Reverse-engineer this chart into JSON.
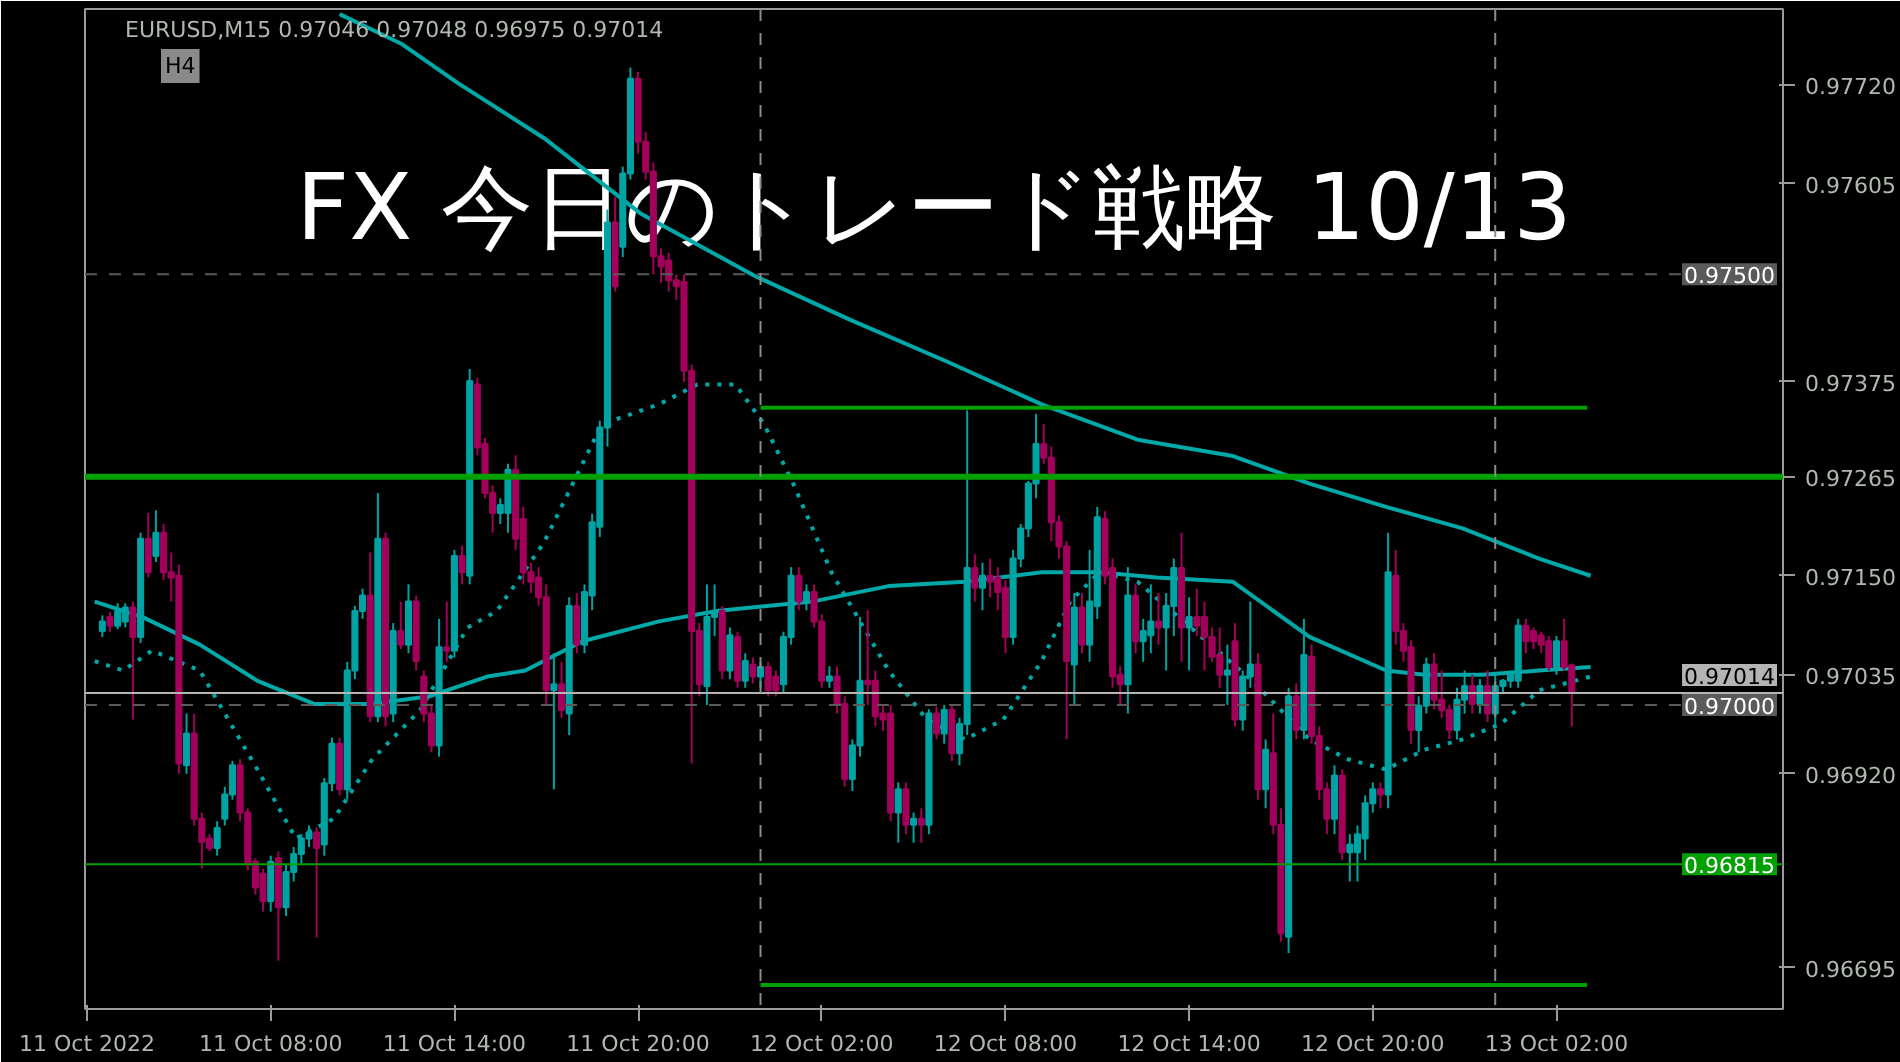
{
  "chart_data": {
    "type": "candlestick",
    "title": "FX 今日のトレード戦略 10/13",
    "subtitle": "EURUSD,M15  0.97046 0.97048 0.96975 0.97014",
    "annotations": [
      "H4"
    ],
    "x": [
      "2022-10-11T02:30",
      "2022-10-11T02:45",
      "2022-10-11T03:00",
      "2022-10-11T03:15",
      "2022-10-11T03:30",
      "2022-10-11T03:45",
      "2022-10-11T04:00",
      "2022-10-11T04:15",
      "2022-10-11T04:30",
      "2022-10-11T04:45",
      "2022-10-11T05:00",
      "2022-10-11T05:15",
      "2022-10-11T05:30",
      "2022-10-11T05:45",
      "2022-10-11T06:00",
      "2022-10-11T06:15",
      "2022-10-11T06:30",
      "2022-10-11T06:45",
      "2022-10-11T07:00",
      "2022-10-11T07:15",
      "2022-10-11T07:30",
      "2022-10-11T07:45",
      "2022-10-11T08:00",
      "2022-10-11T08:15",
      "2022-10-11T08:30",
      "2022-10-11T08:45",
      "2022-10-11T09:00",
      "2022-10-11T09:15",
      "2022-10-11T09:30",
      "2022-10-11T09:45",
      "2022-10-11T10:00",
      "2022-10-11T10:15",
      "2022-10-11T10:30",
      "2022-10-11T10:45",
      "2022-10-11T11:00",
      "2022-10-11T11:15",
      "2022-10-11T11:30",
      "2022-10-11T11:45",
      "2022-10-11T12:00",
      "2022-10-11T12:15",
      "2022-10-11T12:30",
      "2022-10-11T12:45",
      "2022-10-11T13:00",
      "2022-10-11T13:15",
      "2022-10-11T13:30",
      "2022-10-11T13:45",
      "2022-10-11T14:00",
      "2022-10-11T14:15",
      "2022-10-11T14:30",
      "2022-10-11T14:45",
      "2022-10-11T15:00",
      "2022-10-11T15:15",
      "2022-10-11T15:30",
      "2022-10-11T15:45",
      "2022-10-11T16:00",
      "2022-10-11T16:15",
      "2022-10-11T16:30",
      "2022-10-11T16:45",
      "2022-10-11T17:00",
      "2022-10-11T17:15",
      "2022-10-11T17:30",
      "2022-10-11T17:45",
      "2022-10-11T18:00",
      "2022-10-11T18:15",
      "2022-10-11T18:30",
      "2022-10-11T18:45",
      "2022-10-11T19:00",
      "2022-10-11T19:15",
      "2022-10-11T19:30",
      "2022-10-11T19:45",
      "2022-10-11T20:00",
      "2022-10-11T20:15",
      "2022-10-11T20:30",
      "2022-10-11T20:45",
      "2022-10-11T21:00",
      "2022-10-11T21:15",
      "2022-10-11T21:30",
      "2022-10-11T21:45",
      "2022-10-11T22:00",
      "2022-10-11T22:15",
      "2022-10-11T22:30",
      "2022-10-11T22:45",
      "2022-10-11T23:00",
      "2022-10-11T23:15",
      "2022-10-11T23:30",
      "2022-10-11T23:45",
      "2022-10-12T00:00",
      "2022-10-12T00:15",
      "2022-10-12T00:30",
      "2022-10-12T00:45",
      "2022-10-12T01:00",
      "2022-10-12T01:15",
      "2022-10-12T01:30",
      "2022-10-12T01:45",
      "2022-10-12T02:00",
      "2022-10-12T02:15",
      "2022-10-12T02:30",
      "2022-10-12T02:45",
      "2022-10-12T03:00",
      "2022-10-12T03:15",
      "2022-10-12T03:30",
      "2022-10-12T03:45",
      "2022-10-12T04:00",
      "2022-10-12T04:15",
      "2022-10-12T04:30",
      "2022-10-12T04:45",
      "2022-10-12T05:00",
      "2022-10-12T05:15",
      "2022-10-12T05:30",
      "2022-10-12T05:45",
      "2022-10-12T06:00",
      "2022-10-12T06:15",
      "2022-10-12T06:30",
      "2022-10-12T06:45",
      "2022-10-12T07:00",
      "2022-10-12T07:15",
      "2022-10-12T07:30",
      "2022-10-12T07:45",
      "2022-10-12T08:00",
      "2022-10-12T08:15",
      "2022-10-12T08:30",
      "2022-10-12T08:45",
      "2022-10-12T09:00",
      "2022-10-12T09:15",
      "2022-10-12T09:30",
      "2022-10-12T09:45",
      "2022-10-12T10:00",
      "2022-10-12T10:15",
      "2022-10-12T10:30",
      "2022-10-12T10:45",
      "2022-10-12T11:00",
      "2022-10-12T11:15",
      "2022-10-12T11:30",
      "2022-10-12T11:45",
      "2022-10-12T12:00",
      "2022-10-12T12:15",
      "2022-10-12T12:30",
      "2022-10-12T12:45",
      "2022-10-12T13:00",
      "2022-10-12T13:15",
      "2022-10-12T13:30",
      "2022-10-12T13:45",
      "2022-10-12T14:00",
      "2022-10-12T14:15",
      "2022-10-12T14:30",
      "2022-10-12T14:45",
      "2022-10-12T15:00",
      "2022-10-12T15:15",
      "2022-10-12T15:30",
      "2022-10-12T15:45",
      "2022-10-12T16:00",
      "2022-10-12T16:15",
      "2022-10-12T16:30",
      "2022-10-12T16:45",
      "2022-10-12T17:00",
      "2022-10-12T17:15",
      "2022-10-12T17:30",
      "2022-10-12T17:45",
      "2022-10-12T18:00",
      "2022-10-12T18:15",
      "2022-10-12T18:30",
      "2022-10-12T18:45",
      "2022-10-12T19:00",
      "2022-10-12T19:15",
      "2022-10-12T19:30",
      "2022-10-12T19:45",
      "2022-10-12T20:00",
      "2022-10-12T20:15",
      "2022-10-12T20:30",
      "2022-10-12T20:45",
      "2022-10-12T21:00",
      "2022-10-12T21:15",
      "2022-10-12T21:30",
      "2022-10-12T21:45",
      "2022-10-12T22:00",
      "2022-10-12T22:15",
      "2022-10-12T22:30",
      "2022-10-12T22:45",
      "2022-10-12T23:00",
      "2022-10-12T23:15",
      "2022-10-12T23:30",
      "2022-10-12T23:45",
      "2022-10-13T00:00",
      "2022-10-13T00:15",
      "2022-10-13T00:30",
      "2022-10-13T00:45",
      "2022-10-13T01:00",
      "2022-10-13T01:15",
      "2022-10-13T01:30",
      "2022-10-13T01:45",
      "2022-10-13T02:00",
      "2022-10-13T02:15",
      "2022-10-13T02:30"
    ],
    "ohlc": [
      [
        0.97086,
        0.97104,
        0.97079,
        0.97097
      ],
      [
        0.97102,
        0.97108,
        0.97085,
        0.97092
      ],
      [
        0.97092,
        0.97118,
        0.97088,
        0.97109
      ],
      [
        0.97097,
        0.97118,
        0.9709,
        0.97113
      ],
      [
        0.97113,
        0.9712,
        0.96983,
        0.97079
      ],
      [
        0.97079,
        0.972,
        0.97072,
        0.97193
      ],
      [
        0.97193,
        0.97223,
        0.97148,
        0.97154
      ],
      [
        0.97173,
        0.97226,
        0.97166,
        0.972
      ],
      [
        0.972,
        0.9721,
        0.97145,
        0.97154
      ],
      [
        0.97154,
        0.97177,
        0.9712,
        0.97148
      ],
      [
        0.9715,
        0.97163,
        0.9692,
        0.96932
      ],
      [
        0.9693,
        0.9699,
        0.9692,
        0.96967
      ],
      [
        0.96967,
        0.9699,
        0.9686,
        0.96868
      ],
      [
        0.96868,
        0.96875,
        0.9681,
        0.96841
      ],
      [
        0.96845,
        0.9685,
        0.9683,
        0.96834
      ],
      [
        0.96834,
        0.96865,
        0.96825,
        0.96857
      ],
      [
        0.96868,
        0.96905,
        0.9686,
        0.96896
      ],
      [
        0.96896,
        0.96935,
        0.9689,
        0.9693
      ],
      [
        0.9693,
        0.96937,
        0.96865,
        0.96875
      ],
      [
        0.96875,
        0.9688,
        0.96808,
        0.96815
      ],
      [
        0.96818,
        0.96822,
        0.9678,
        0.96788
      ],
      [
        0.96804,
        0.9681,
        0.9676,
        0.96772
      ],
      [
        0.96772,
        0.96825,
        0.9676,
        0.96818
      ],
      [
        0.96822,
        0.9683,
        0.96703,
        0.96765
      ],
      [
        0.96765,
        0.96815,
        0.96755,
        0.96806
      ],
      [
        0.96806,
        0.96835,
        0.96795,
        0.96827
      ],
      [
        0.96827,
        0.9685,
        0.96815,
        0.96845
      ],
      [
        0.96845,
        0.9686,
        0.96835,
        0.96852
      ],
      [
        0.96852,
        0.96858,
        0.9673,
        0.96834
      ],
      [
        0.96838,
        0.96915,
        0.96825,
        0.96909
      ],
      [
        0.96909,
        0.96962,
        0.969,
        0.96955
      ],
      [
        0.96955,
        0.96962,
        0.96895,
        0.96902
      ],
      [
        0.96902,
        0.9705,
        0.9689,
        0.9704
      ],
      [
        0.9704,
        0.97115,
        0.9703,
        0.97109
      ],
      [
        0.97109,
        0.97135,
        0.971,
        0.97127
      ],
      [
        0.97127,
        0.97177,
        0.9698,
        0.96987
      ],
      [
        0.96987,
        0.97246,
        0.9698,
        0.97193
      ],
      [
        0.97193,
        0.972,
        0.96975,
        0.96987
      ],
      [
        0.9699,
        0.97095,
        0.9698,
        0.97086
      ],
      [
        0.97086,
        0.9712,
        0.97065,
        0.9707
      ],
      [
        0.9707,
        0.9714,
        0.9706,
        0.9712
      ],
      [
        0.9712,
        0.97127,
        0.9704,
        0.97051
      ],
      [
        0.97033,
        0.9704,
        0.9698,
        0.9699
      ],
      [
        0.9699,
        0.97,
        0.96945,
        0.96953
      ],
      [
        0.96953,
        0.971,
        0.9694,
        0.97067
      ],
      [
        0.97067,
        0.9712,
        0.9705,
        0.97063
      ],
      [
        0.97063,
        0.9718,
        0.97055,
        0.97173
      ],
      [
        0.97173,
        0.97185,
        0.9714,
        0.97154
      ],
      [
        0.9715,
        0.9739,
        0.9714,
        0.97376
      ],
      [
        0.97372,
        0.9738,
        0.9729,
        0.97299
      ],
      [
        0.97303,
        0.9731,
        0.9724,
        0.97246
      ],
      [
        0.97246,
        0.97255,
        0.972,
        0.97223
      ],
      [
        0.97223,
        0.9724,
        0.9721,
        0.97232
      ],
      [
        0.97223,
        0.9728,
        0.972,
        0.97273
      ],
      [
        0.97273,
        0.9729,
        0.9718,
        0.97193
      ],
      [
        0.97216,
        0.9723,
        0.9714,
        0.97154
      ],
      [
        0.97154,
        0.97165,
        0.9713,
        0.97143
      ],
      [
        0.97148,
        0.9716,
        0.97115,
        0.97125
      ],
      [
        0.97125,
        0.9714,
        0.97,
        0.97017
      ],
      [
        0.97017,
        0.9706,
        0.96902,
        0.97024
      ],
      [
        0.97024,
        0.9705,
        0.96985,
        0.96994
      ],
      [
        0.9699,
        0.97125,
        0.96965,
        0.97115
      ],
      [
        0.97115,
        0.9713,
        0.9706,
        0.9707
      ],
      [
        0.9707,
        0.9714,
        0.9706,
        0.97131
      ],
      [
        0.97127,
        0.97222,
        0.9711,
        0.97212
      ],
      [
        0.97207,
        0.9733,
        0.97195,
        0.97322
      ],
      [
        0.97322,
        0.97575,
        0.973,
        0.9756
      ],
      [
        0.9756,
        0.9759,
        0.9748,
        0.97486
      ],
      [
        0.97532,
        0.97625,
        0.9752,
        0.97617
      ],
      [
        0.97617,
        0.9774,
        0.9761,
        0.97727
      ],
      [
        0.97727,
        0.97735,
        0.9764,
        0.97654
      ],
      [
        0.97654,
        0.97665,
        0.9761,
        0.97619
      ],
      [
        0.97619,
        0.9763,
        0.975,
        0.97521
      ],
      [
        0.97521,
        0.9753,
        0.9749,
        0.97509
      ],
      [
        0.97516,
        0.97525,
        0.9748,
        0.97493
      ],
      [
        0.97493,
        0.975,
        0.9747,
        0.97486
      ],
      [
        0.97491,
        0.975,
        0.97375,
        0.97388
      ],
      [
        0.97388,
        0.97395,
        0.96932,
        0.97086
      ],
      [
        0.97086,
        0.97095,
        0.9701,
        0.97024
      ],
      [
        0.97022,
        0.9714,
        0.97,
        0.97102
      ],
      [
        0.97102,
        0.9714,
        0.9708,
        0.97109
      ],
      [
        0.97109,
        0.97115,
        0.9703,
        0.9704
      ],
      [
        0.9704,
        0.9709,
        0.9703,
        0.97081
      ],
      [
        0.97079,
        0.97085,
        0.9702,
        0.97028
      ],
      [
        0.97028,
        0.9706,
        0.9702,
        0.97051
      ],
      [
        0.97047,
        0.97055,
        0.97025,
        0.97033
      ],
      [
        0.97033,
        0.9705,
        0.9702,
        0.97044
      ],
      [
        0.97044,
        0.9705,
        0.9701,
        0.97017
      ],
      [
        0.97033,
        0.9704,
        0.9701,
        0.97017
      ],
      [
        0.97024,
        0.97085,
        0.97015,
        0.97079
      ],
      [
        0.97079,
        0.9716,
        0.9707,
        0.9715
      ],
      [
        0.9715,
        0.9716,
        0.9711,
        0.9712
      ],
      [
        0.9712,
        0.9714,
        0.9711,
        0.97131
      ],
      [
        0.97131,
        0.9714,
        0.9709,
        0.97097
      ],
      [
        0.97097,
        0.97105,
        0.9702,
        0.97028
      ],
      [
        0.97028,
        0.97045,
        0.9702,
        0.97033
      ],
      [
        0.97033,
        0.97045,
        0.9699,
        0.97001
      ],
      [
        0.97001,
        0.9701,
        0.96905,
        0.96914
      ],
      [
        0.96914,
        0.9696,
        0.969,
        0.96953
      ],
      [
        0.96953,
        0.97102,
        0.9694,
        0.97028
      ],
      [
        0.97028,
        0.9711,
        0.97,
        0.97024
      ],
      [
        0.97028,
        0.9704,
        0.96975,
        0.96987
      ],
      [
        0.9699,
        0.97,
        0.9697,
        0.96983
      ],
      [
        0.9699,
        0.97,
        0.96865,
        0.96875
      ],
      [
        0.96875,
        0.9691,
        0.9684,
        0.96902
      ],
      [
        0.96902,
        0.9691,
        0.9685,
        0.96861
      ],
      [
        0.96861,
        0.96875,
        0.9684,
        0.96868
      ],
      [
        0.96868,
        0.9688,
        0.9684,
        0.96861
      ],
      [
        0.96861,
        0.96995,
        0.9685,
        0.9699
      ],
      [
        0.9699,
        0.96998,
        0.9696,
        0.96967
      ],
      [
        0.96967,
        0.97,
        0.96955,
        0.96994
      ],
      [
        0.96994,
        0.97,
        0.96935,
        0.96944
      ],
      [
        0.96944,
        0.96985,
        0.9693,
        0.96978
      ],
      [
        0.96978,
        0.97342,
        0.96965,
        0.97159
      ],
      [
        0.97159,
        0.97175,
        0.9712,
        0.97136
      ],
      [
        0.97136,
        0.97165,
        0.9711,
        0.9715
      ],
      [
        0.9715,
        0.9717,
        0.97125,
        0.97143
      ],
      [
        0.97148,
        0.9716,
        0.9711,
        0.97131
      ],
      [
        0.97136,
        0.97145,
        0.9706,
        0.97079
      ],
      [
        0.97079,
        0.9718,
        0.9707,
        0.9717
      ],
      [
        0.9717,
        0.9721,
        0.9716,
        0.97205
      ],
      [
        0.97205,
        0.9726,
        0.97195,
        0.97257
      ],
      [
        0.97257,
        0.97338,
        0.9724,
        0.97303
      ],
      [
        0.97303,
        0.97326,
        0.9728,
        0.97287
      ],
      [
        0.97287,
        0.973,
        0.9719,
        0.97212
      ],
      [
        0.97212,
        0.9722,
        0.9717,
        0.97184
      ],
      [
        0.97184,
        0.9719,
        0.9696,
        0.97051
      ],
      [
        0.97047,
        0.9713,
        0.97,
        0.97113
      ],
      [
        0.97113,
        0.9713,
        0.9706,
        0.9707
      ],
      [
        0.9707,
        0.9718,
        0.9705,
        0.9712
      ],
      [
        0.97115,
        0.9723,
        0.971,
        0.97218
      ],
      [
        0.97216,
        0.97225,
        0.9714,
        0.9715
      ],
      [
        0.97159,
        0.9717,
        0.9702,
        0.97033
      ],
      [
        0.97035,
        0.97045,
        0.97,
        0.97024
      ],
      [
        0.97024,
        0.9716,
        0.9699,
        0.97127
      ],
      [
        0.97127,
        0.9714,
        0.9706,
        0.97074
      ],
      [
        0.97074,
        0.971,
        0.9705,
        0.97086
      ],
      [
        0.97081,
        0.9714,
        0.9706,
        0.97097
      ],
      [
        0.97097,
        0.9713,
        0.9707,
        0.9709
      ],
      [
        0.9709,
        0.9713,
        0.9704,
        0.97115
      ],
      [
        0.97115,
        0.9717,
        0.9708,
        0.97159
      ],
      [
        0.97159,
        0.972,
        0.9705,
        0.9709
      ],
      [
        0.9709,
        0.97125,
        0.9704,
        0.97102
      ],
      [
        0.97102,
        0.97135,
        0.9708,
        0.97092
      ],
      [
        0.97102,
        0.9712,
        0.9704,
        0.97079
      ],
      [
        0.97079,
        0.9709,
        0.9705,
        0.97056
      ],
      [
        0.97058,
        0.9709,
        0.9702,
        0.97035
      ],
      [
        0.97035,
        0.9707,
        0.97,
        0.9704
      ],
      [
        0.97074,
        0.97095,
        0.96975,
        0.96983
      ],
      [
        0.96983,
        0.9704,
        0.9697,
        0.97033
      ],
      [
        0.97033,
        0.9712,
        0.9702,
        0.97047
      ],
      [
        0.97047,
        0.9706,
        0.9689,
        0.96902
      ],
      [
        0.96902,
        0.9696,
        0.9688,
        0.96948
      ],
      [
        0.96944,
        0.9699,
        0.9685,
        0.96861
      ],
      [
        0.96861,
        0.9688,
        0.96725,
        0.96735
      ],
      [
        0.96731,
        0.9702,
        0.96712,
        0.9701
      ],
      [
        0.9701,
        0.97025,
        0.9696,
        0.96971
      ],
      [
        0.96971,
        0.971,
        0.9696,
        0.97058
      ],
      [
        0.97056,
        0.9707,
        0.96955,
        0.96964
      ],
      [
        0.96964,
        0.96975,
        0.9689,
        0.96902
      ],
      [
        0.96902,
        0.9691,
        0.9685,
        0.96868
      ],
      [
        0.96868,
        0.9693,
        0.9685,
        0.96918
      ],
      [
        0.96918,
        0.96925,
        0.9682,
        0.96829
      ],
      [
        0.96829,
        0.9685,
        0.96795,
        0.96838
      ],
      [
        0.96829,
        0.9686,
        0.96795,
        0.9685
      ],
      [
        0.96845,
        0.96895,
        0.9682,
        0.96886
      ],
      [
        0.96886,
        0.9691,
        0.96875,
        0.96902
      ],
      [
        0.96902,
        0.9691,
        0.9688,
        0.96896
      ],
      [
        0.96896,
        0.972,
        0.9688,
        0.97154
      ],
      [
        0.9715,
        0.9718,
        0.9707,
        0.97086
      ],
      [
        0.97086,
        0.97095,
        0.9705,
        0.97063
      ],
      [
        0.97067,
        0.97075,
        0.96955,
        0.96971
      ],
      [
        0.96971,
        0.9701,
        0.96945,
        0.96999
      ],
      [
        0.96999,
        0.97055,
        0.9699,
        0.97047
      ],
      [
        0.97047,
        0.9706,
        0.96995,
        0.97006
      ],
      [
        0.97006,
        0.9704,
        0.96985,
        0.96994
      ],
      [
        0.96994,
        0.97,
        0.9696,
        0.96971
      ],
      [
        0.96971,
        0.9702,
        0.9696,
        0.97006
      ],
      [
        0.97006,
        0.9704,
        0.9699,
        0.97022
      ],
      [
        0.97022,
        0.97035,
        0.9699,
        0.97001
      ],
      [
        0.97001,
        0.9703,
        0.9699,
        0.97022
      ],
      [
        0.97022,
        0.9704,
        0.9698,
        0.9699
      ],
      [
        0.9699,
        0.97035,
        0.96975,
        0.97022
      ],
      [
        0.97022,
        0.9703,
        0.97015,
        0.97028
      ],
      [
        0.97028,
        0.9704,
        0.9702,
        0.97035
      ],
      [
        0.97028,
        0.971,
        0.9702,
        0.97092
      ],
      [
        0.97092,
        0.971,
        0.9706,
        0.97074
      ],
      [
        0.97086,
        0.9709,
        0.97065,
        0.97074
      ],
      [
        0.97081,
        0.97085,
        0.9706,
        0.9707
      ],
      [
        0.97074,
        0.9708,
        0.9704,
        0.97044
      ],
      [
        0.97044,
        0.9708,
        0.97035,
        0.97074
      ],
      [
        0.97074,
        0.971,
        0.9704,
        0.97044
      ],
      [
        0.97046,
        0.97048,
        0.96975,
        0.97014
      ]
    ],
    "series": [
      {
        "type": "line",
        "color": "#00a8a8",
        "line_style": "solid",
        "x": [
          "2022-10-11T10:15",
          "2022-10-11T12:15",
          "2022-10-11T14:07",
          "2022-10-11T16:56",
          "2022-10-11T20:04",
          "2022-10-11T23:49",
          "2022-10-12T02:56",
          "2022-10-12T06:04",
          "2022-10-12T09:11",
          "2022-10-12T12:19",
          "2022-10-12T15:26",
          "2022-10-12T17:56",
          "2022-10-12T20:26",
          "2022-10-12T22:56",
          "2022-10-13T01:26",
          "2022-10-13T03:07"
        ],
        "values": [
          0.97802,
          0.97768,
          0.97722,
          0.97658,
          0.97571,
          0.97498,
          0.97447,
          0.97399,
          0.97349,
          0.97308,
          0.97289,
          0.97257,
          0.9723,
          0.97205,
          0.9717,
          0.9715
        ]
      },
      {
        "type": "line",
        "color": "#00a8a8",
        "line_style": "solid",
        "x": [
          "2022-10-11T02:15",
          "2022-10-11T03:49",
          "2022-10-11T05:41",
          "2022-10-11T07:34",
          "2022-10-11T09:26",
          "2022-10-11T11:19",
          "2022-10-11T13:11",
          "2022-10-11T15:04",
          "2022-10-11T16:19",
          "2022-10-11T18:11",
          "2022-10-11T20:41",
          "2022-10-11T22:34",
          "2022-10-12T01:41",
          "2022-10-12T04:11",
          "2022-10-12T06:41",
          "2022-10-12T09:11",
          "2022-10-12T11:04",
          "2022-10-12T12:56",
          "2022-10-12T15:26",
          "2022-10-12T17:56",
          "2022-10-12T20:26",
          "2022-10-12T21:41",
          "2022-10-12T23:34",
          "2022-10-13T01:26",
          "2022-10-13T03:07"
        ],
        "values": [
          0.9712,
          0.97102,
          0.9707,
          0.97028,
          0.97001,
          0.97001,
          0.9701,
          0.97033,
          0.9704,
          0.97074,
          0.97097,
          0.97109,
          0.9712,
          0.97138,
          0.97143,
          0.97154,
          0.97154,
          0.97148,
          0.97143,
          0.97079,
          0.9704,
          0.97035,
          0.97035,
          0.9704,
          0.97044
        ]
      },
      {
        "type": "line",
        "color": "#00a8a8",
        "line_style": "dotted",
        "x": [
          "2022-10-11T02:15",
          "2022-10-11T03:11",
          "2022-10-11T04:07",
          "2022-10-11T05:41",
          "2022-10-11T07:34",
          "2022-10-11T08:49",
          "2022-10-11T10:04",
          "2022-10-11T11:19",
          "2022-10-11T12:53",
          "2022-10-11T14:26",
          "2022-10-11T15:23",
          "2022-10-11T16:56",
          "2022-10-11T18:49",
          "2022-10-11T20:41",
          "2022-10-11T21:56",
          "2022-10-11T23:11",
          "2022-10-12T00:07",
          "2022-10-12T01:04",
          "2022-10-12T02:19",
          "2022-10-12T03:15",
          "2022-10-12T04:11",
          "2022-10-12T05:26",
          "2022-10-12T06:41",
          "2022-10-12T07:56",
          "2022-10-12T09:11",
          "2022-10-12T10:07",
          "2022-10-12T11:04",
          "2022-10-12T12:19",
          "2022-10-12T14:11",
          "2022-10-12T16:04",
          "2022-10-12T17:56",
          "2022-10-12T19:11",
          "2022-10-12T20:26",
          "2022-10-12T21:41",
          "2022-10-12T22:56",
          "2022-10-13T00:11",
          "2022-10-13T01:26",
          "2022-10-13T03:07"
        ],
        "values": [
          0.97051,
          0.9704,
          0.97063,
          0.9704,
          0.96925,
          0.96845,
          0.96868,
          0.96937,
          0.96994,
          0.9709,
          0.97109,
          0.97189,
          0.97326,
          0.97349,
          0.97372,
          0.97372,
          0.97326,
          0.97257,
          0.97154,
          0.97097,
          0.9704,
          0.96983,
          0.9696,
          0.96983,
          0.97051,
          0.9712,
          0.97154,
          0.97143,
          0.97086,
          0.97028,
          0.9696,
          0.96937,
          0.96925,
          0.96948,
          0.9696,
          0.96978,
          0.97017,
          0.97033
        ]
      },
      {
        "type": "line",
        "color": "#00a000",
        "line_style": "solid",
        "x": [
          "2022-10-12T00:00",
          "2022-10-13T03:00"
        ],
        "values": [
          0.97345,
          0.97345
        ]
      },
      {
        "type": "line",
        "color": "#00a000",
        "line_style": "solid",
        "x": [
          "2022-10-12T00:00",
          "2022-10-13T03:00"
        ],
        "values": [
          0.96675,
          0.96675
        ]
      }
    ],
    "ref_lines": [
      {
        "axis": "y",
        "value": 0.97265,
        "color": "#00a000",
        "line_style": "solid"
      },
      {
        "axis": "y",
        "value": 0.975,
        "label": "0.97500",
        "color": "#5a5a5a",
        "line_style": "dashed"
      },
      {
        "axis": "y",
        "value": 0.97014,
        "label": "0.97014",
        "color": "#b4b4b4",
        "line_style": "solid"
      },
      {
        "axis": "y",
        "value": 0.97,
        "label": "0.97000",
        "color": "#5a5a5a",
        "line_style": "dashed"
      },
      {
        "axis": "y",
        "value": 0.96815,
        "label": "0.96815",
        "color": "#00a000",
        "line_style": "solid"
      },
      {
        "axis": "x",
        "value": "2022-10-12T00:00",
        "color": "#8a8a8a",
        "line_style": "dashed"
      },
      {
        "axis": "x",
        "value": "2022-10-13T00:00",
        "color": "#8a8a8a",
        "line_style": "dashed"
      }
    ],
    "xlim": [
      "2022-10-11T01:56",
      "2022-10-13T09:24"
    ],
    "ylim": [
      0.96647,
      0.97808
    ],
    "xticks": [
      {
        "value": "2022-10-11T02:00",
        "label": "11 Oct 2022"
      },
      {
        "value": "2022-10-11T08:00",
        "label": "11 Oct 08:00"
      },
      {
        "value": "2022-10-11T14:00",
        "label": "11 Oct 14:00"
      },
      {
        "value": "2022-10-11T20:00",
        "label": "11 Oct 20:00"
      },
      {
        "value": "2022-10-12T02:00",
        "label": "12 Oct 02:00"
      },
      {
        "value": "2022-10-12T08:00",
        "label": "12 Oct 08:00"
      },
      {
        "value": "2022-10-12T14:00",
        "label": "12 Oct 14:00"
      },
      {
        "value": "2022-10-12T20:00",
        "label": "12 Oct 20:00"
      },
      {
        "value": "2022-10-13T02:00",
        "label": "13 Oct 02:00"
      }
    ],
    "yticks": [
      {
        "value": 0.9772,
        "label": "0.97720"
      },
      0.97605,
      0.97375,
      0.97265,
      {
        "value": 0.9715,
        "label": "0.97150"
      },
      0.97035,
      {
        "value": 0.9692,
        "label": "0.96920"
      },
      0.96695
    ],
    "grid": false
  }
}
